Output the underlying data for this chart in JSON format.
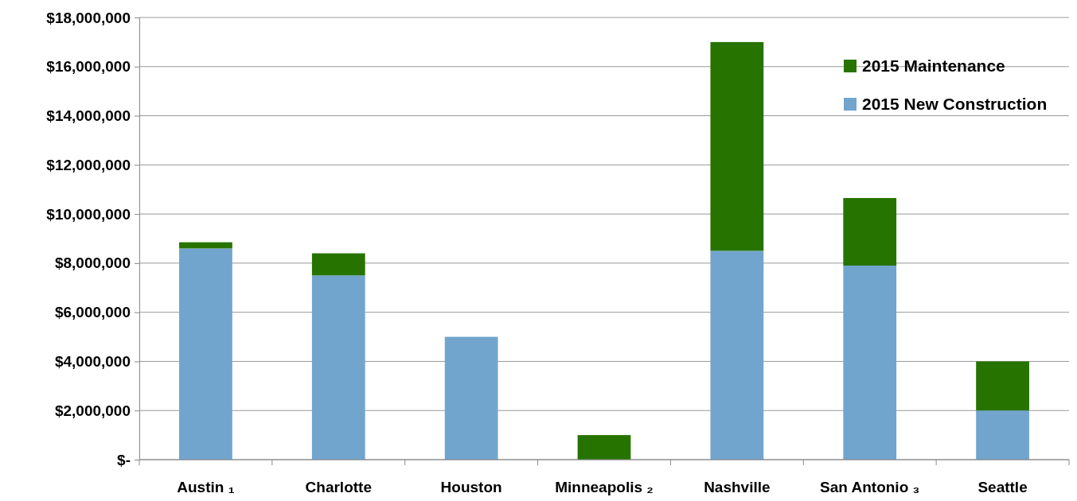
{
  "chart_data": {
    "type": "bar",
    "stacked": true,
    "categories": [
      "Austin ₁",
      "Charlotte",
      "Houston",
      "Minneapolis ₂",
      "Nashville",
      "San Antonio ₃",
      "Seattle"
    ],
    "series": [
      {
        "name": "2015 New Construction",
        "color": "#71a5cd",
        "values": [
          8600000,
          7500000,
          5000000,
          0,
          8500000,
          7900000,
          2000000
        ]
      },
      {
        "name": "2015 Maintenance",
        "color": "#267300",
        "values": [
          250000,
          900000,
          0,
          1000000,
          8500000,
          2750000,
          2000000
        ]
      }
    ],
    "ylim": [
      0,
      18000000
    ],
    "yticks": [
      {
        "value": 0,
        "label": "$-"
      },
      {
        "value": 2000000,
        "label": "$2,000,000"
      },
      {
        "value": 4000000,
        "label": "$4,000,000"
      },
      {
        "value": 6000000,
        "label": "$6,000,000"
      },
      {
        "value": 8000000,
        "label": "$8,000,000"
      },
      {
        "value": 10000000,
        "label": "$10,000,000"
      },
      {
        "value": 12000000,
        "label": "$12,000,000"
      },
      {
        "value": 14000000,
        "label": "$14,000,000"
      },
      {
        "value": 16000000,
        "label": "$16,000,000"
      },
      {
        "value": 18000000,
        "label": "$18,000,000"
      }
    ],
    "grid": "y",
    "legend": "top right"
  }
}
